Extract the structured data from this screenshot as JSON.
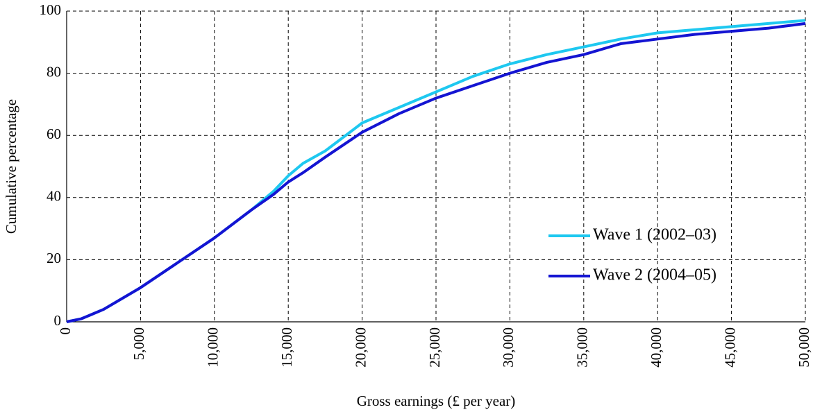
{
  "chart_data": {
    "type": "line",
    "x_label": "Gross earnings (£ per year)",
    "y_label": "Cumulative percentage",
    "x": [
      0,
      1000,
      2500,
      5000,
      7500,
      10000,
      12500,
      14000,
      15000,
      16000,
      17500,
      20000,
      22500,
      25000,
      27500,
      30000,
      32500,
      35000,
      37500,
      40000,
      42500,
      45000,
      47500,
      50000
    ],
    "series": [
      {
        "name": "Wave 1 (2002–03)",
        "color": "#1ec8f0",
        "values": [
          0,
          1,
          4,
          11,
          19,
          27,
          36,
          42,
          47,
          51,
          55,
          64,
          69,
          74,
          79,
          83,
          86,
          88.5,
          91,
          93,
          94,
          95,
          96,
          97
        ]
      },
      {
        "name": "Wave 2 (2004–05)",
        "color": "#1414d2",
        "values": [
          0,
          1,
          4,
          11,
          19,
          27,
          36,
          41,
          45,
          48,
          53,
          61,
          67,
          72,
          76,
          80,
          83.5,
          86,
          89.5,
          91,
          92.5,
          93.5,
          94.5,
          96
        ]
      }
    ],
    "xlim": [
      0,
      50000
    ],
    "xticks": [
      0,
      {
        "value": 5000,
        "label": "5,000"
      },
      {
        "value": 10000,
        "label": "10,000"
      },
      {
        "value": 15000,
        "label": "15,000"
      },
      {
        "value": 20000,
        "label": "20,000"
      },
      {
        "value": 25000,
        "label": "25,000"
      },
      {
        "value": 30000,
        "label": "30,000"
      },
      {
        "value": 35000,
        "label": "35,000"
      },
      {
        "value": 40000,
        "label": "40,000"
      },
      {
        "value": 45000,
        "label": "45,000"
      },
      {
        "value": 50000,
        "label": "50,000"
      }
    ],
    "ylim": [
      0,
      100
    ],
    "yticks": [
      0,
      20,
      40,
      60,
      80,
      100
    ],
    "grid": true
  }
}
